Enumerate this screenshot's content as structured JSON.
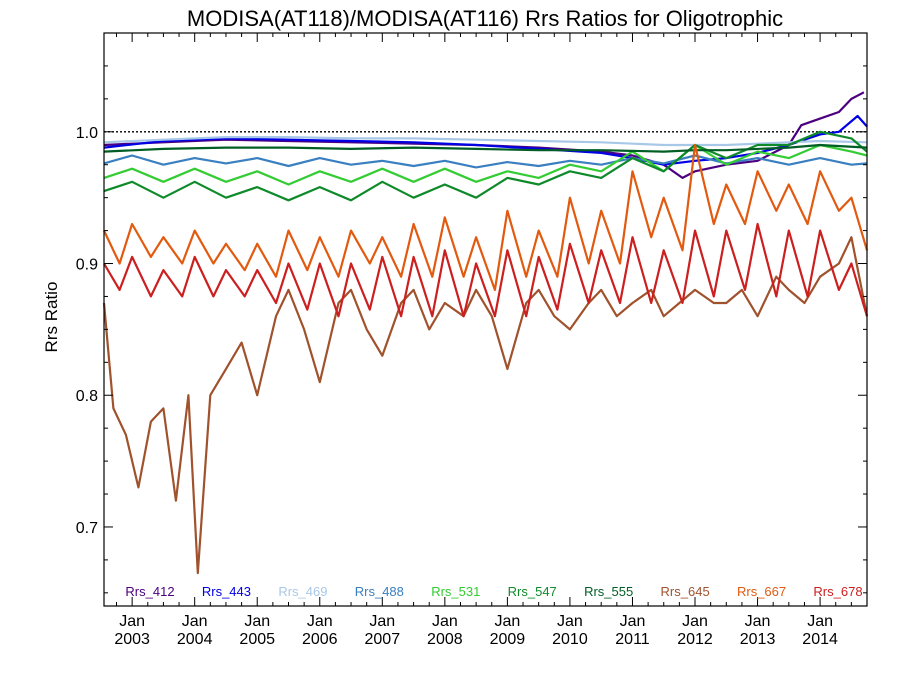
{
  "chart_data": {
    "type": "line",
    "title": "MODISA(AT118)/MODISA(AT116)  Rrs Ratios for Oligotrophic",
    "ylabel": "Rrs Ratio",
    "xlabel": "",
    "xlim": [
      2002.55,
      2014.75
    ],
    "ylim": [
      0.64,
      1.075
    ],
    "reference_line": 1.0,
    "y_ticks": [
      {
        "value": 0.7,
        "label": "0.7"
      },
      {
        "value": 0.8,
        "label": "0.8"
      },
      {
        "value": 0.9,
        "label": "0.9"
      },
      {
        "value": 1.0,
        "label": "1.0"
      }
    ],
    "x_ticks": [
      {
        "value": 2003.0,
        "month": "Jan",
        "year": "2003"
      },
      {
        "value": 2004.0,
        "month": "Jan",
        "year": "2004"
      },
      {
        "value": 2005.0,
        "month": "Jan",
        "year": "2005"
      },
      {
        "value": 2006.0,
        "month": "Jan",
        "year": "2006"
      },
      {
        "value": 2007.0,
        "month": "Jan",
        "year": "2007"
      },
      {
        "value": 2008.0,
        "month": "Jan",
        "year": "2008"
      },
      {
        "value": 2009.0,
        "month": "Jan",
        "year": "2009"
      },
      {
        "value": 2010.0,
        "month": "Jan",
        "year": "2010"
      },
      {
        "value": 2011.0,
        "month": "Jan",
        "year": "2011"
      },
      {
        "value": 2012.0,
        "month": "Jan",
        "year": "2012"
      },
      {
        "value": 2013.0,
        "month": "Jan",
        "year": "2013"
      },
      {
        "value": 2014.0,
        "month": "Jan",
        "year": "2014"
      }
    ],
    "legend_placement": "bottom",
    "series": [
      {
        "name": "Rrs_412",
        "color": "#4b0082",
        "x": [
          2002.55,
          2003.5,
          2004.5,
          2005.5,
          2006.5,
          2007.5,
          2008.5,
          2009.5,
          2010.5,
          2011.0,
          2011.5,
          2011.8,
          2012.0,
          2012.5,
          2013.0,
          2013.5,
          2013.7,
          2014.0,
          2014.3,
          2014.5,
          2014.7
        ],
        "y": [
          0.99,
          0.992,
          0.994,
          0.993,
          0.992,
          0.991,
          0.99,
          0.988,
          0.985,
          0.982,
          0.975,
          0.965,
          0.97,
          0.975,
          0.978,
          0.99,
          1.005,
          1.01,
          1.015,
          1.025,
          1.03
        ]
      },
      {
        "name": "Rrs_443",
        "color": "#0000e6",
        "x": [
          2002.55,
          2003.5,
          2004.5,
          2005.5,
          2006.5,
          2007.5,
          2008.5,
          2009.5,
          2010.5,
          2011.0,
          2011.5,
          2012.0,
          2012.5,
          2013.0,
          2013.5,
          2014.0,
          2014.3,
          2014.6,
          2014.75
        ],
        "y": [
          0.988,
          0.993,
          0.995,
          0.994,
          0.993,
          0.992,
          0.99,
          0.987,
          0.984,
          0.98,
          0.975,
          0.978,
          0.98,
          0.984,
          0.99,
          0.998,
          1.0,
          1.012,
          1.004
        ]
      },
      {
        "name": "Rrs_469",
        "color": "#a8c8e8",
        "x": [
          2002.55,
          2003.5,
          2004.5,
          2005.5,
          2006.5,
          2007.5,
          2008.5,
          2009.5,
          2010.5,
          2011.5,
          2012.5,
          2013.5,
          2014.0,
          2014.75
        ],
        "y": [
          0.992,
          0.994,
          0.996,
          0.996,
          0.995,
          0.995,
          0.994,
          0.993,
          0.992,
          0.99,
          0.99,
          0.992,
          0.993,
          0.992
        ]
      },
      {
        "name": "Rrs_488",
        "color": "#3a7fc0",
        "x": [
          2002.55,
          2003.0,
          2003.5,
          2004.0,
          2004.5,
          2005.0,
          2005.5,
          2006.0,
          2006.5,
          2007.0,
          2007.5,
          2008.0,
          2008.5,
          2009.0,
          2009.5,
          2010.0,
          2010.5,
          2011.0,
          2011.5,
          2012.0,
          2012.5,
          2013.0,
          2013.5,
          2014.0,
          2014.5,
          2014.75
        ],
        "y": [
          0.976,
          0.982,
          0.975,
          0.98,
          0.976,
          0.98,
          0.974,
          0.98,
          0.975,
          0.978,
          0.974,
          0.978,
          0.973,
          0.977,
          0.974,
          0.978,
          0.975,
          0.98,
          0.976,
          0.982,
          0.976,
          0.98,
          0.975,
          0.98,
          0.975,
          0.976
        ]
      },
      {
        "name": "Rrs_531",
        "color": "#33cc33",
        "x": [
          2002.55,
          2003.0,
          2003.5,
          2004.0,
          2004.5,
          2005.0,
          2005.5,
          2006.0,
          2006.5,
          2007.0,
          2007.5,
          2008.0,
          2008.5,
          2009.0,
          2009.5,
          2010.0,
          2010.5,
          2011.0,
          2011.5,
          2012.0,
          2012.5,
          2013.0,
          2013.5,
          2014.0,
          2014.5,
          2014.75
        ],
        "y": [
          0.965,
          0.972,
          0.962,
          0.972,
          0.962,
          0.97,
          0.96,
          0.97,
          0.962,
          0.972,
          0.962,
          0.972,
          0.962,
          0.97,
          0.965,
          0.975,
          0.97,
          0.985,
          0.97,
          0.99,
          0.975,
          0.985,
          0.98,
          0.99,
          0.985,
          0.982
        ]
      },
      {
        "name": "Rrs_547",
        "color": "#0f8a2a",
        "x": [
          2002.55,
          2003.0,
          2003.5,
          2004.0,
          2004.5,
          2005.0,
          2005.5,
          2006.0,
          2006.5,
          2007.0,
          2007.5,
          2008.0,
          2008.5,
          2009.0,
          2009.5,
          2010.0,
          2010.5,
          2011.0,
          2011.5,
          2012.0,
          2012.5,
          2013.0,
          2013.5,
          2014.0,
          2014.5,
          2014.75
        ],
        "y": [
          0.955,
          0.962,
          0.95,
          0.962,
          0.95,
          0.958,
          0.948,
          0.958,
          0.948,
          0.962,
          0.95,
          0.96,
          0.95,
          0.965,
          0.96,
          0.97,
          0.965,
          0.98,
          0.97,
          0.99,
          0.98,
          0.99,
          0.99,
          1.0,
          0.995,
          0.985
        ]
      },
      {
        "name": "Rrs_555",
        "color": "#005e25",
        "x": [
          2002.55,
          2003.5,
          2004.5,
          2005.5,
          2006.5,
          2007.5,
          2008.5,
          2009.5,
          2010.5,
          2011.5,
          2012.0,
          2012.5,
          2013.5,
          2014.0,
          2014.75
        ],
        "y": [
          0.985,
          0.987,
          0.988,
          0.988,
          0.987,
          0.988,
          0.987,
          0.986,
          0.986,
          0.985,
          0.986,
          0.986,
          0.988,
          0.99,
          0.988
        ]
      },
      {
        "name": "Rrs_645",
        "color": "#a0522d",
        "x": [
          2002.55,
          2002.7,
          2002.9,
          2003.1,
          2003.3,
          2003.5,
          2003.7,
          2003.9,
          2004.05,
          2004.25,
          2004.5,
          2004.75,
          2005.0,
          2005.3,
          2005.5,
          2005.75,
          2006.0,
          2006.3,
          2006.5,
          2006.75,
          2007.0,
          2007.3,
          2007.5,
          2007.75,
          2008.0,
          2008.3,
          2008.5,
          2008.75,
          2009.0,
          2009.3,
          2009.5,
          2009.75,
          2010.0,
          2010.3,
          2010.5,
          2010.75,
          2011.0,
          2011.3,
          2011.5,
          2011.75,
          2012.0,
          2012.3,
          2012.5,
          2012.75,
          2013.0,
          2013.3,
          2013.5,
          2013.75,
          2014.0,
          2014.3,
          2014.5,
          2014.75
        ],
        "y": [
          0.87,
          0.79,
          0.77,
          0.73,
          0.78,
          0.79,
          0.72,
          0.8,
          0.665,
          0.8,
          0.82,
          0.84,
          0.8,
          0.86,
          0.88,
          0.85,
          0.81,
          0.87,
          0.88,
          0.85,
          0.83,
          0.87,
          0.88,
          0.85,
          0.87,
          0.86,
          0.88,
          0.86,
          0.82,
          0.87,
          0.88,
          0.86,
          0.85,
          0.87,
          0.88,
          0.86,
          0.87,
          0.88,
          0.86,
          0.87,
          0.88,
          0.87,
          0.87,
          0.88,
          0.86,
          0.89,
          0.88,
          0.87,
          0.89,
          0.9,
          0.92,
          0.86
        ]
      },
      {
        "name": "Rrs_667",
        "color": "#e25a10",
        "x": [
          2002.55,
          2002.8,
          2003.0,
          2003.3,
          2003.5,
          2003.8,
          2004.0,
          2004.3,
          2004.5,
          2004.8,
          2005.0,
          2005.3,
          2005.5,
          2005.8,
          2006.0,
          2006.3,
          2006.5,
          2006.8,
          2007.0,
          2007.3,
          2007.5,
          2007.8,
          2008.0,
          2008.3,
          2008.5,
          2008.8,
          2009.0,
          2009.3,
          2009.5,
          2009.8,
          2010.0,
          2010.3,
          2010.5,
          2010.8,
          2011.0,
          2011.3,
          2011.5,
          2011.8,
          2012.0,
          2012.3,
          2012.5,
          2012.8,
          2013.0,
          2013.3,
          2013.5,
          2013.8,
          2014.0,
          2014.3,
          2014.5,
          2014.75
        ],
        "y": [
          0.925,
          0.9,
          0.93,
          0.905,
          0.92,
          0.9,
          0.925,
          0.9,
          0.915,
          0.895,
          0.915,
          0.89,
          0.925,
          0.895,
          0.92,
          0.89,
          0.925,
          0.9,
          0.92,
          0.89,
          0.93,
          0.89,
          0.935,
          0.89,
          0.92,
          0.88,
          0.94,
          0.89,
          0.925,
          0.89,
          0.95,
          0.9,
          0.94,
          0.9,
          0.97,
          0.92,
          0.95,
          0.91,
          0.99,
          0.93,
          0.96,
          0.93,
          0.97,
          0.94,
          0.96,
          0.93,
          0.97,
          0.94,
          0.95,
          0.91
        ]
      },
      {
        "name": "Rrs_678",
        "color": "#cc1f1f",
        "x": [
          2002.55,
          2002.8,
          2003.0,
          2003.3,
          2003.5,
          2003.8,
          2004.0,
          2004.3,
          2004.5,
          2004.8,
          2005.0,
          2005.3,
          2005.5,
          2005.8,
          2006.0,
          2006.3,
          2006.5,
          2006.8,
          2007.0,
          2007.3,
          2007.5,
          2007.8,
          2008.0,
          2008.3,
          2008.5,
          2008.8,
          2009.0,
          2009.3,
          2009.5,
          2009.8,
          2010.0,
          2010.3,
          2010.5,
          2010.8,
          2011.0,
          2011.3,
          2011.5,
          2011.8,
          2012.0,
          2012.3,
          2012.5,
          2012.8,
          2013.0,
          2013.3,
          2013.5,
          2013.8,
          2014.0,
          2014.3,
          2014.5,
          2014.75
        ],
        "y": [
          0.9,
          0.88,
          0.905,
          0.875,
          0.895,
          0.875,
          0.905,
          0.875,
          0.895,
          0.875,
          0.895,
          0.87,
          0.9,
          0.865,
          0.9,
          0.86,
          0.9,
          0.865,
          0.905,
          0.86,
          0.905,
          0.86,
          0.91,
          0.86,
          0.9,
          0.86,
          0.91,
          0.86,
          0.905,
          0.865,
          0.915,
          0.87,
          0.91,
          0.87,
          0.92,
          0.87,
          0.91,
          0.87,
          0.925,
          0.875,
          0.925,
          0.88,
          0.93,
          0.875,
          0.925,
          0.875,
          0.925,
          0.88,
          0.9,
          0.86
        ]
      }
    ]
  }
}
